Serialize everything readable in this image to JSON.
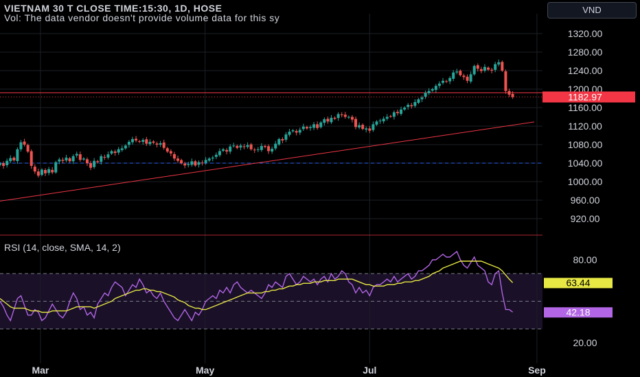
{
  "header": {
    "title": "VIETNAM 30 T CLOSE TIME:15:30, 1D, HOSE",
    "vol_note": "Vol: The data vendor doesn't provide volume data for this sy"
  },
  "currency_button": "VND",
  "colors": {
    "up": "#26a69a",
    "down": "#ef5350",
    "rsi": "#b266e6",
    "rsi_ma": "#e8e845",
    "price_line": "#f23645",
    "dashed_blue": "#2962ff",
    "bg": "#000000"
  },
  "chart_data": [
    {
      "type": "candlestick",
      "title": "VIETNAM 30 T CLOSE TIME:15:30, 1D, HOSE",
      "yticks": [
        "1320.00",
        "1280.00",
        "1240.00",
        "1200.00",
        "1160.00",
        "1120.00",
        "1080.00",
        "1040.00",
        "1000.00",
        "960.00",
        "920.00"
      ],
      "ylim": [
        900,
        1345
      ],
      "xticks": [
        "Mar",
        "May",
        "Jul",
        "Sep"
      ],
      "last_price_label": "1182.97",
      "last_price": 1182.97,
      "resistance_level": 1192,
      "support_level": 1040,
      "trendline": [
        {
          "date": "2024-02-15",
          "value": 958
        },
        {
          "date": "2024-08-31",
          "value": 1129
        }
      ],
      "closes": [
        1040,
        1034,
        1045,
        1051,
        1046,
        1070,
        1085,
        1080,
        1065,
        1034,
        1022,
        1013,
        1026,
        1018,
        1027,
        1020,
        1042,
        1048,
        1045,
        1052,
        1044,
        1055,
        1060,
        1047,
        1050,
        1040,
        1030,
        1045,
        1042,
        1055,
        1052,
        1059,
        1066,
        1062,
        1070,
        1072,
        1078,
        1086,
        1092,
        1089,
        1086,
        1090,
        1082,
        1086,
        1084,
        1080,
        1083,
        1073,
        1065,
        1061,
        1050,
        1045,
        1040,
        1035,
        1038,
        1044,
        1035,
        1042,
        1040,
        1047,
        1050,
        1052,
        1058,
        1066,
        1070,
        1065,
        1076,
        1078,
        1073,
        1078,
        1075,
        1079,
        1070,
        1068,
        1070,
        1077,
        1075,
        1066,
        1071,
        1082,
        1092,
        1089,
        1102,
        1108,
        1111,
        1106,
        1112,
        1119,
        1115,
        1118,
        1124,
        1116,
        1128,
        1135,
        1130,
        1138,
        1136,
        1146,
        1144,
        1140,
        1140,
        1134,
        1118,
        1122,
        1114,
        1115,
        1110,
        1124,
        1130,
        1132,
        1136,
        1140,
        1141,
        1150,
        1148,
        1156,
        1160,
        1166,
        1163,
        1172,
        1178,
        1182,
        1192,
        1196,
        1200,
        1207,
        1212,
        1218,
        1216,
        1224,
        1236,
        1238,
        1230,
        1226,
        1218,
        1232,
        1250,
        1244,
        1239,
        1248,
        1242,
        1240,
        1254,
        1258,
        1240,
        1196,
        1188,
        1182.97
      ],
      "dates": {
        "first": "2024-02-15",
        "last": "2024-08-23"
      }
    },
    {
      "type": "line",
      "title": "RSI (14, close, SMA, 14, 2)",
      "yticks": [
        "80.00",
        "20.00"
      ],
      "ylim": [
        10,
        90
      ],
      "levels": [
        70,
        50,
        30
      ],
      "last_rsi_label": "42.18",
      "last_ma_label": "63.44",
      "series": [
        {
          "name": "RSI",
          "values": [
            50,
            46,
            40,
            36,
            44,
            52,
            54,
            47,
            40,
            40,
            44,
            42,
            36,
            38,
            43,
            48,
            44,
            40,
            38,
            42,
            50,
            56,
            52,
            44,
            46,
            40,
            42,
            38,
            48,
            52,
            56,
            54,
            60,
            64,
            62,
            60,
            54,
            58,
            62,
            60,
            66,
            62,
            56,
            58,
            54,
            52,
            56,
            50,
            46,
            42,
            38,
            36,
            40,
            44,
            40,
            36,
            42,
            40,
            44,
            50,
            52,
            54,
            52,
            58,
            56,
            60,
            56,
            62,
            64,
            60,
            58,
            56,
            58,
            56,
            54,
            52,
            56,
            62,
            60,
            64,
            62,
            60,
            68,
            70,
            66,
            62,
            64,
            68,
            66,
            64,
            66,
            62,
            66,
            68,
            64,
            70,
            66,
            68,
            72,
            70,
            64,
            62,
            56,
            60,
            56,
            58,
            54,
            60,
            62,
            62,
            64,
            66,
            64,
            68,
            64,
            66,
            68,
            70,
            66,
            68,
            72,
            72,
            74,
            76,
            80,
            80,
            82,
            84,
            82,
            82,
            84,
            86,
            80,
            76,
            74,
            78,
            82,
            76,
            74,
            72,
            64,
            62,
            70,
            72,
            56,
            44,
            44,
            42.18
          ]
        },
        {
          "name": "RSI-based MA",
          "values": [
            52,
            50,
            48,
            46,
            45,
            45,
            45,
            45,
            44,
            43,
            43,
            43,
            42,
            42,
            42,
            43,
            43,
            43,
            43,
            43,
            44,
            45,
            46,
            46,
            46,
            46,
            46,
            45,
            46,
            47,
            48,
            49,
            50,
            52,
            53,
            54,
            55,
            56,
            57,
            58,
            58,
            59,
            59,
            58,
            58,
            57,
            57,
            56,
            55,
            54,
            53,
            51,
            50,
            49,
            47,
            46,
            45,
            45,
            44,
            44,
            45,
            46,
            47,
            48,
            49,
            50,
            51,
            52,
            53,
            54,
            55,
            56,
            56,
            56,
            56,
            56,
            57,
            57,
            58,
            58,
            59,
            59,
            60,
            61,
            61,
            62,
            62,
            63,
            63,
            63,
            64,
            64,
            64,
            65,
            65,
            65,
            65,
            66,
            66,
            66,
            66,
            66,
            65,
            64,
            63,
            62,
            62,
            61,
            61,
            61,
            61,
            62,
            62,
            62,
            63,
            63,
            64,
            64,
            64,
            65,
            65,
            66,
            67,
            68,
            70,
            71,
            72,
            74,
            75,
            76,
            77,
            78,
            79,
            79,
            79,
            79,
            79,
            79,
            79,
            78,
            77,
            76,
            75,
            74,
            72,
            69,
            66,
            63.44
          ]
        }
      ]
    }
  ]
}
